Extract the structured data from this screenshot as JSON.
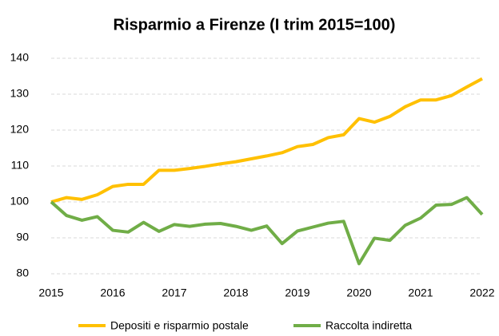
{
  "chart_data": {
    "type": "line",
    "title": "Risparmio a Firenze (I trim 2015=100)",
    "x": [
      2015,
      2015.25,
      2015.5,
      2015.75,
      2016,
      2016.25,
      2016.5,
      2016.75,
      2017,
      2017.25,
      2017.5,
      2017.75,
      2018,
      2018.25,
      2018.5,
      2018.75,
      2019,
      2019.25,
      2019.5,
      2019.75,
      2020,
      2020.25,
      2020.5,
      2020.75,
      2021,
      2021.25,
      2021.5,
      2021.75,
      2022
    ],
    "series": [
      {
        "name": "Depositi e risparmio postale",
        "color": "#FFC000",
        "values": [
          100,
          101.2,
          100.7,
          102,
          104.3,
          104.9,
          104.9,
          108.8,
          108.8,
          109.3,
          109.9,
          110.6,
          111.2,
          112,
          112.8,
          113.7,
          115.4,
          116,
          117.9,
          118.7,
          123.2,
          122.2,
          123.8,
          126.5,
          128.4,
          128.4,
          129.6,
          132,
          134.3
        ]
      },
      {
        "name": "Raccolta indiretta",
        "color": "#70AD47",
        "values": [
          100,
          96.2,
          94.9,
          95.9,
          92.1,
          91.6,
          94.3,
          91.8,
          93.7,
          93.2,
          93.8,
          94,
          93.2,
          92.1,
          93.3,
          88.4,
          91.9,
          93,
          94.1,
          94.6,
          82.8,
          89.9,
          89.3,
          93.5,
          95.5,
          99.1,
          99.3,
          101.2,
          96.5
        ]
      }
    ],
    "xlim": [
      2015,
      2022
    ],
    "xticks": [
      2015,
      2016,
      2017,
      2018,
      2019,
      2020,
      2021,
      2022
    ],
    "ylim": [
      80,
      140
    ],
    "yticks": [
      80,
      90,
      100,
      110,
      120,
      130,
      140
    ],
    "grid": true,
    "legend": "bottom"
  }
}
